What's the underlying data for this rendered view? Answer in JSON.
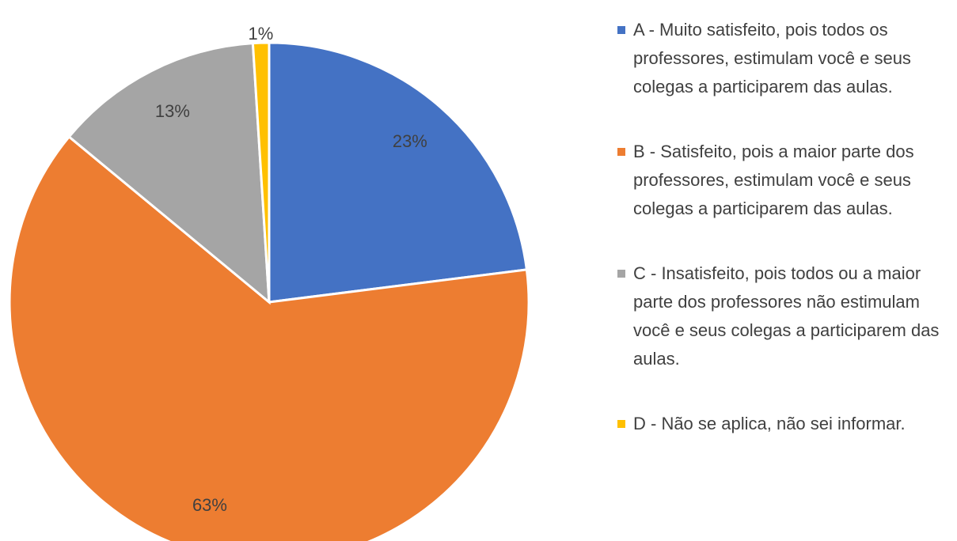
{
  "chart_data": {
    "type": "pie",
    "categories": [
      "A - Muito satisfeito, pois todos os professores, estimulam você e seus colegas a participarem das aulas.",
      "B - Satisfeito, pois a maior parte dos professores, estimulam você e seus colegas a participarem das aulas.",
      "C - Insatisfeito, pois todos ou a maior parte dos professores não estimulam você e seus colegas a participarem das aulas.",
      "D - Não se aplica, não sei informar."
    ],
    "values": [
      23,
      63,
      13,
      1
    ],
    "value_labels": [
      "23%",
      "63%",
      "13%",
      "1%"
    ],
    "colors": [
      "#4472c4",
      "#ed7d31",
      "#a5a5a5",
      "#ffc000"
    ],
    "legend": "right"
  }
}
